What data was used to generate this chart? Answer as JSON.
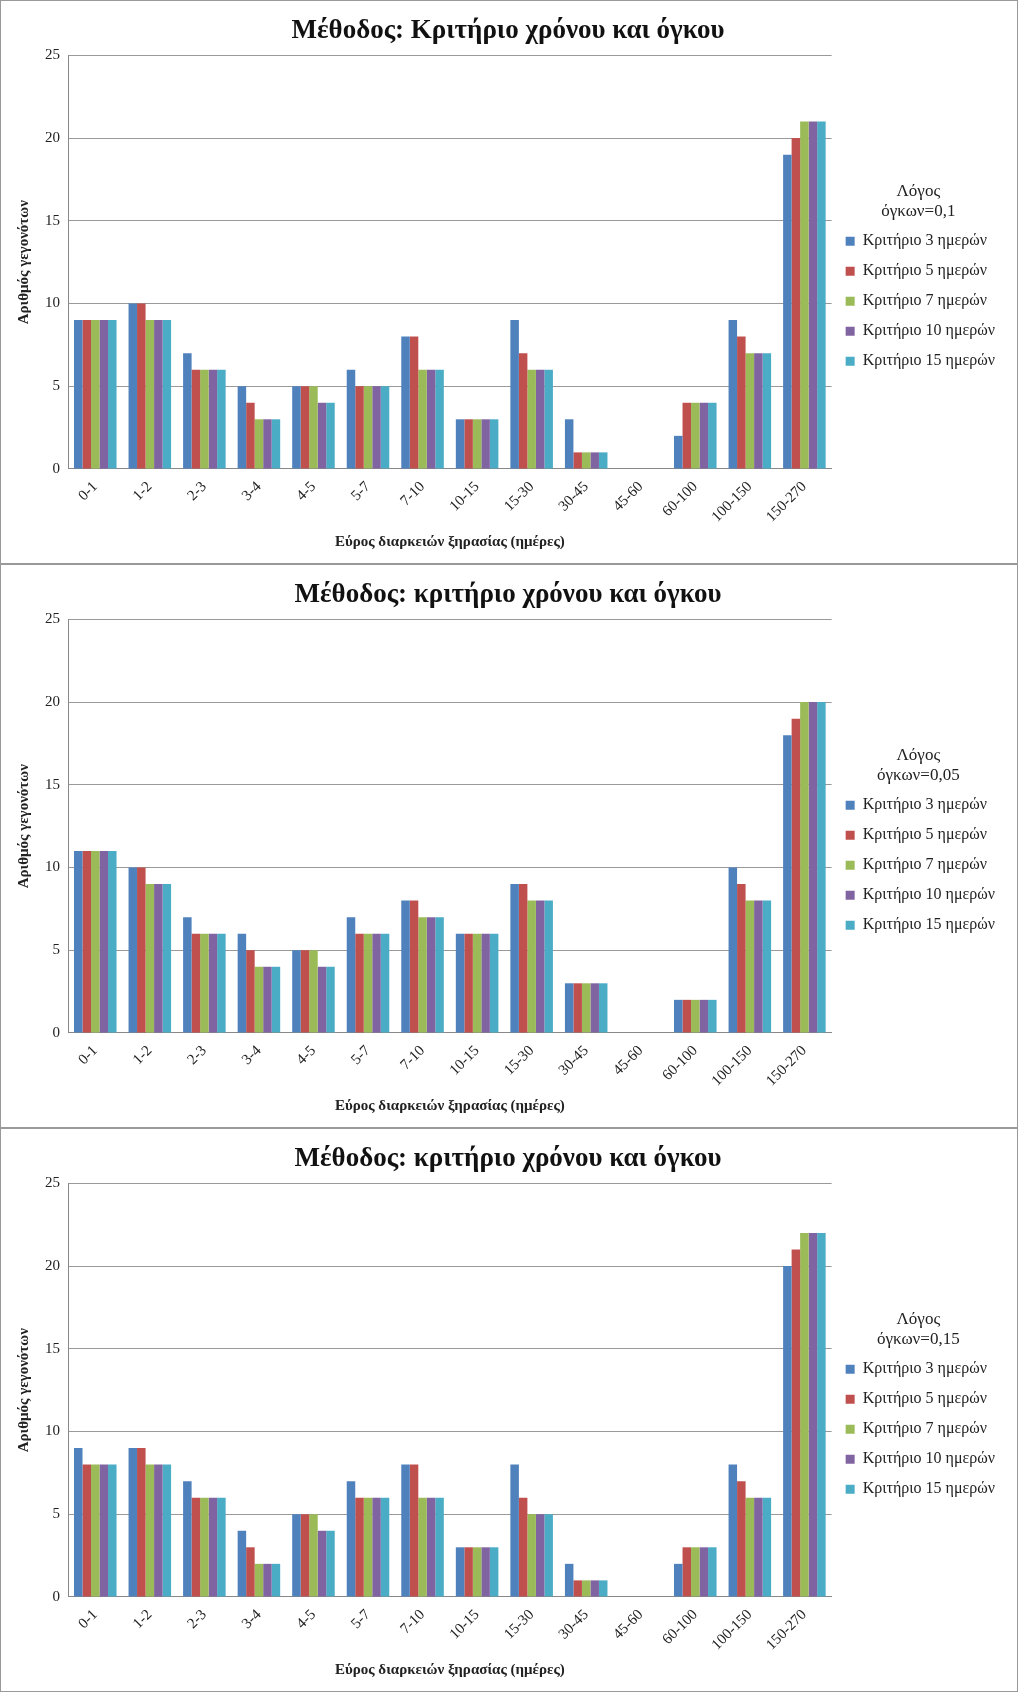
{
  "chart_data": [
    {
      "type": "bar",
      "title": "Μέθοδος: Κριτήριο χρόνου και όγκου",
      "xlabel": "Εύρος διαρκειών ξηρασίας (ημέρες)",
      "ylabel": "Αριθμός γεγονότων",
      "legend_title": "Λόγος όγκων=0,1",
      "categories": [
        "0-1",
        "1-2",
        "2-3",
        "3-4",
        "4-5",
        "5-7",
        "7-10",
        "10-15",
        "15-30",
        "30-45",
        "45-60",
        "60-100",
        "100-150",
        "150-270"
      ],
      "series": [
        {
          "name": "Κριτήριο 3 ημερών",
          "color": "#4f81bd",
          "values": [
            9,
            10,
            7,
            5,
            5,
            6,
            8,
            3,
            9,
            3,
            0,
            2,
            9,
            19
          ]
        },
        {
          "name": "Κριτήριο 5 ημερών",
          "color": "#c0504d",
          "values": [
            9,
            10,
            6,
            4,
            5,
            5,
            8,
            3,
            7,
            1,
            0,
            4,
            8,
            20
          ]
        },
        {
          "name": "Κριτήριο 7 ημερών",
          "color": "#9bbb59",
          "values": [
            9,
            9,
            6,
            3,
            5,
            5,
            6,
            3,
            6,
            1,
            0,
            4,
            7,
            21
          ]
        },
        {
          "name": "Κριτήριο 10 ημερών",
          "color": "#8064a2",
          "values": [
            9,
            9,
            6,
            3,
            4,
            5,
            6,
            3,
            6,
            1,
            0,
            4,
            7,
            21
          ]
        },
        {
          "name": "Κριτήριο 15 ημερών",
          "color": "#4bacc6",
          "values": [
            9,
            9,
            6,
            3,
            4,
            5,
            6,
            3,
            6,
            1,
            0,
            4,
            7,
            21
          ]
        }
      ],
      "ylim": [
        0,
        25
      ],
      "yticks": [
        0,
        5,
        10,
        15,
        20,
        25
      ],
      "grid": "y",
      "legend": "right"
    },
    {
      "type": "bar",
      "title": "Μέθοδος: κριτήριο χρόνου και όγκου",
      "xlabel": "Εύρος διαρκειών ξηρασίας (ημέρες)",
      "ylabel": "Αριθμός γεγονότων",
      "legend_title": "Λόγος όγκων=0,05",
      "categories": [
        "0-1",
        "1-2",
        "2-3",
        "3-4",
        "4-5",
        "5-7",
        "7-10",
        "10-15",
        "15-30",
        "30-45",
        "45-60",
        "60-100",
        "100-150",
        "150-270"
      ],
      "series": [
        {
          "name": "Κριτήριο 3 ημερών",
          "color": "#4f81bd",
          "values": [
            11,
            10,
            7,
            6,
            5,
            7,
            8,
            6,
            9,
            3,
            0,
            2,
            10,
            18
          ]
        },
        {
          "name": "Κριτήριο 5 ημερών",
          "color": "#c0504d",
          "values": [
            11,
            10,
            6,
            5,
            5,
            6,
            8,
            6,
            9,
            3,
            0,
            2,
            9,
            19
          ]
        },
        {
          "name": "Κριτήριο 7 ημερών",
          "color": "#9bbb59",
          "values": [
            11,
            9,
            6,
            4,
            5,
            6,
            7,
            6,
            8,
            3,
            0,
            2,
            8,
            20
          ]
        },
        {
          "name": "Κριτήριο 10 ημερών",
          "color": "#8064a2",
          "values": [
            11,
            9,
            6,
            4,
            4,
            6,
            7,
            6,
            8,
            3,
            0,
            2,
            8,
            20
          ]
        },
        {
          "name": "Κριτήριο 15 ημερών",
          "color": "#4bacc6",
          "values": [
            11,
            9,
            6,
            4,
            4,
            6,
            7,
            6,
            8,
            3,
            0,
            2,
            8,
            20
          ]
        }
      ],
      "ylim": [
        0,
        25
      ],
      "yticks": [
        0,
        5,
        10,
        15,
        20,
        25
      ],
      "grid": "y",
      "legend": "right"
    },
    {
      "type": "bar",
      "title": "Μέθοδος: κριτήριο χρόνου και όγκου",
      "xlabel": "Εύρος διαρκειών ξηρασίας (ημέρες)",
      "ylabel": "Αριθμός γεγονότων",
      "legend_title": "Λόγος όγκων=0,15",
      "categories": [
        "0-1",
        "1-2",
        "2-3",
        "3-4",
        "4-5",
        "5-7",
        "7-10",
        "10-15",
        "15-30",
        "30-45",
        "45-60",
        "60-100",
        "100-150",
        "150-270"
      ],
      "series": [
        {
          "name": "Κριτήριο 3 ημερών",
          "color": "#4f81bd",
          "values": [
            9,
            9,
            7,
            4,
            5,
            7,
            8,
            3,
            8,
            2,
            0,
            2,
            8,
            20
          ]
        },
        {
          "name": "Κριτήριο 5 ημερών",
          "color": "#c0504d",
          "values": [
            8,
            9,
            6,
            3,
            5,
            6,
            8,
            3,
            6,
            1,
            0,
            3,
            7,
            21
          ]
        },
        {
          "name": "Κριτήριο 7 ημερών",
          "color": "#9bbb59",
          "values": [
            8,
            8,
            6,
            2,
            5,
            6,
            6,
            3,
            5,
            1,
            0,
            3,
            6,
            22
          ]
        },
        {
          "name": "Κριτήριο 10 ημερών",
          "color": "#8064a2",
          "values": [
            8,
            8,
            6,
            2,
            4,
            6,
            6,
            3,
            5,
            1,
            0,
            3,
            6,
            22
          ]
        },
        {
          "name": "Κριτήριο 15 ημερών",
          "color": "#4bacc6",
          "values": [
            8,
            8,
            6,
            2,
            4,
            6,
            6,
            3,
            5,
            1,
            0,
            3,
            6,
            22
          ]
        }
      ],
      "ylim": [
        0,
        25
      ],
      "yticks": [
        0,
        5,
        10,
        15,
        20,
        25
      ],
      "grid": "y",
      "legend": "right"
    }
  ]
}
